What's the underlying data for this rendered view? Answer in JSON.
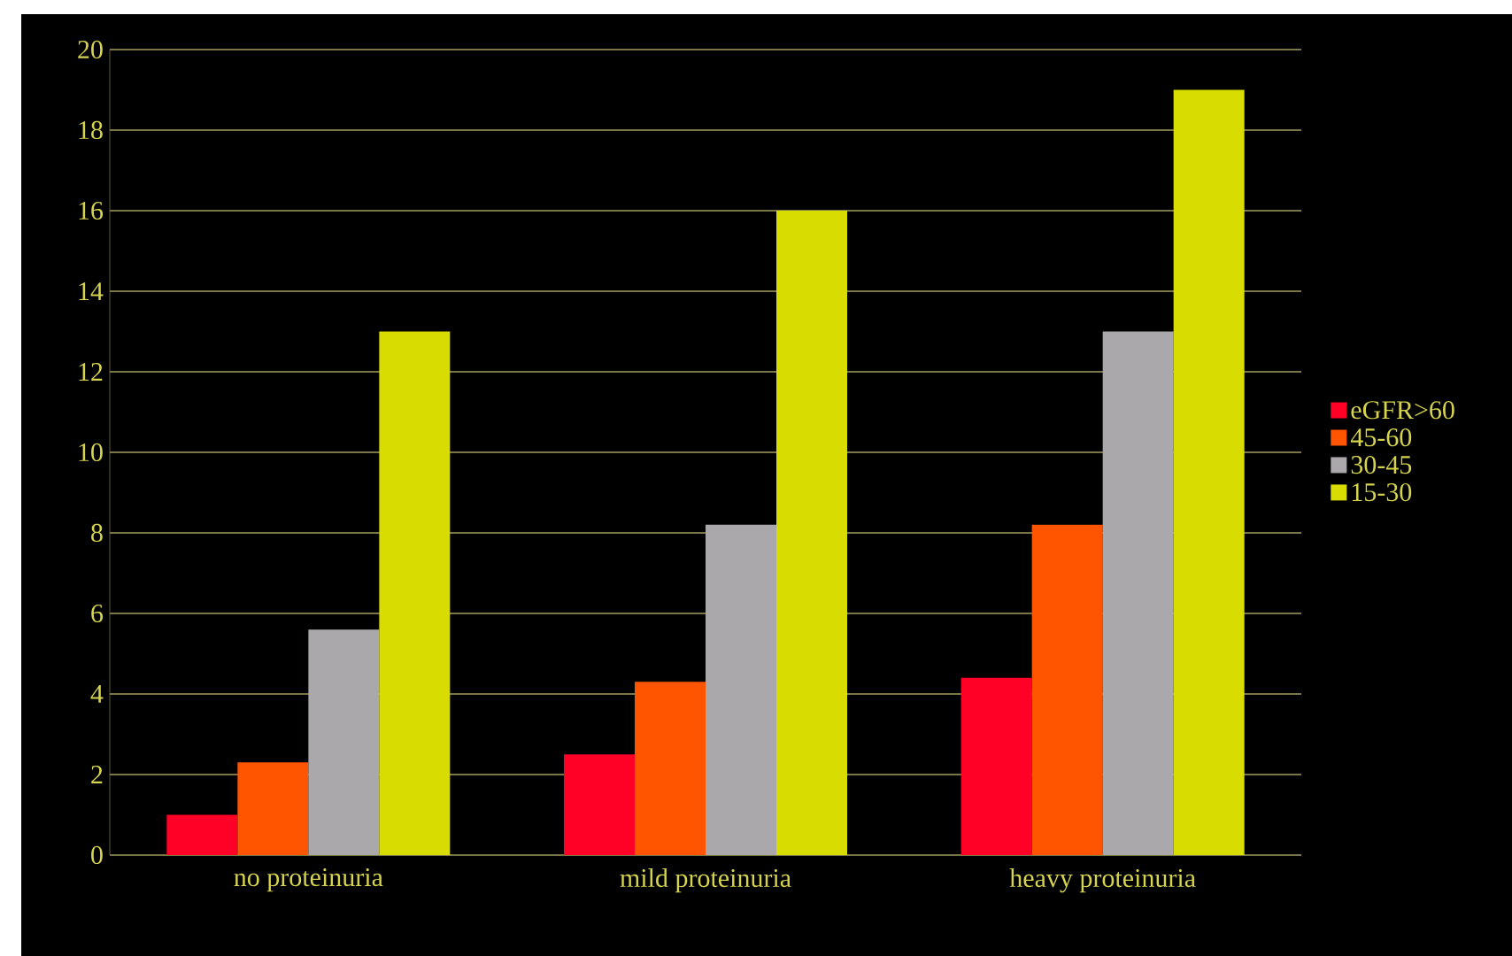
{
  "chart_data": {
    "type": "bar",
    "categories": [
      "no proteinuria",
      "mild proteinuria",
      "heavy proteinuria"
    ],
    "series": [
      {
        "name": "eGFR>60",
        "color": "#ff0026",
        "values": [
          1,
          2.5,
          4.4
        ]
      },
      {
        "name": "45-60",
        "color": "#ff5500",
        "values": [
          2.3,
          4.3,
          8.2
        ]
      },
      {
        "name": "30-45",
        "color": "#aaa8aa",
        "values": [
          5.6,
          8.2,
          13
        ]
      },
      {
        "name": "15-30",
        "color": "#d8dc00",
        "values": [
          13,
          16,
          19
        ]
      }
    ],
    "ylim": [
      0,
      20
    ],
    "yticks": [
      0,
      2,
      4,
      6,
      8,
      10,
      12,
      14,
      16,
      18,
      20
    ],
    "grid": "y",
    "legend": "right"
  }
}
